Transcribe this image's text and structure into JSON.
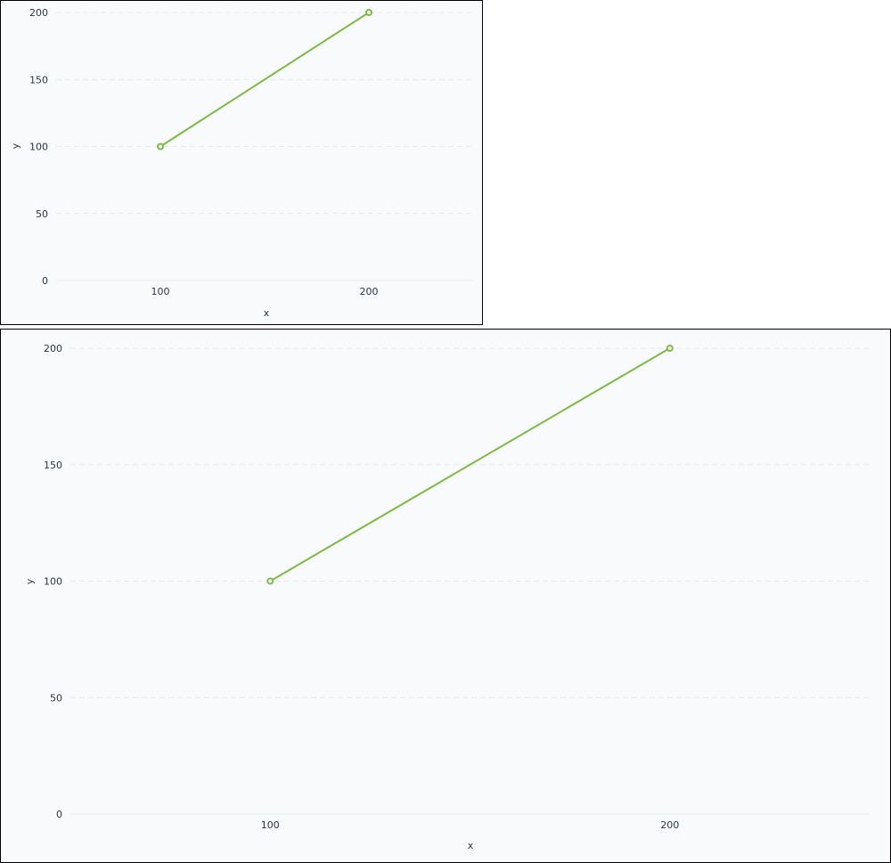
{
  "chart_data": [
    {
      "type": "line",
      "x": [
        100,
        200
      ],
      "series": [
        {
          "values": [
            100,
            200
          ]
        }
      ],
      "xticks": [
        100,
        200
      ],
      "yticks": [
        0,
        50,
        100,
        150,
        200
      ],
      "xlim": [
        50,
        250
      ],
      "ylim": [
        0,
        200
      ],
      "xlabel": "x",
      "ylabel": "y",
      "grid": true,
      "color": "#7cbb44"
    },
    {
      "type": "line",
      "x": [
        100,
        200
      ],
      "series": [
        {
          "values": [
            100,
            200
          ]
        }
      ],
      "xticks": [
        100,
        200
      ],
      "yticks": [
        0,
        50,
        100,
        150,
        200
      ],
      "xlim": [
        50,
        250
      ],
      "ylim": [
        0,
        200
      ],
      "xlabel": "x",
      "ylabel": "y",
      "grid": true,
      "color": "#7cbb44"
    }
  ]
}
